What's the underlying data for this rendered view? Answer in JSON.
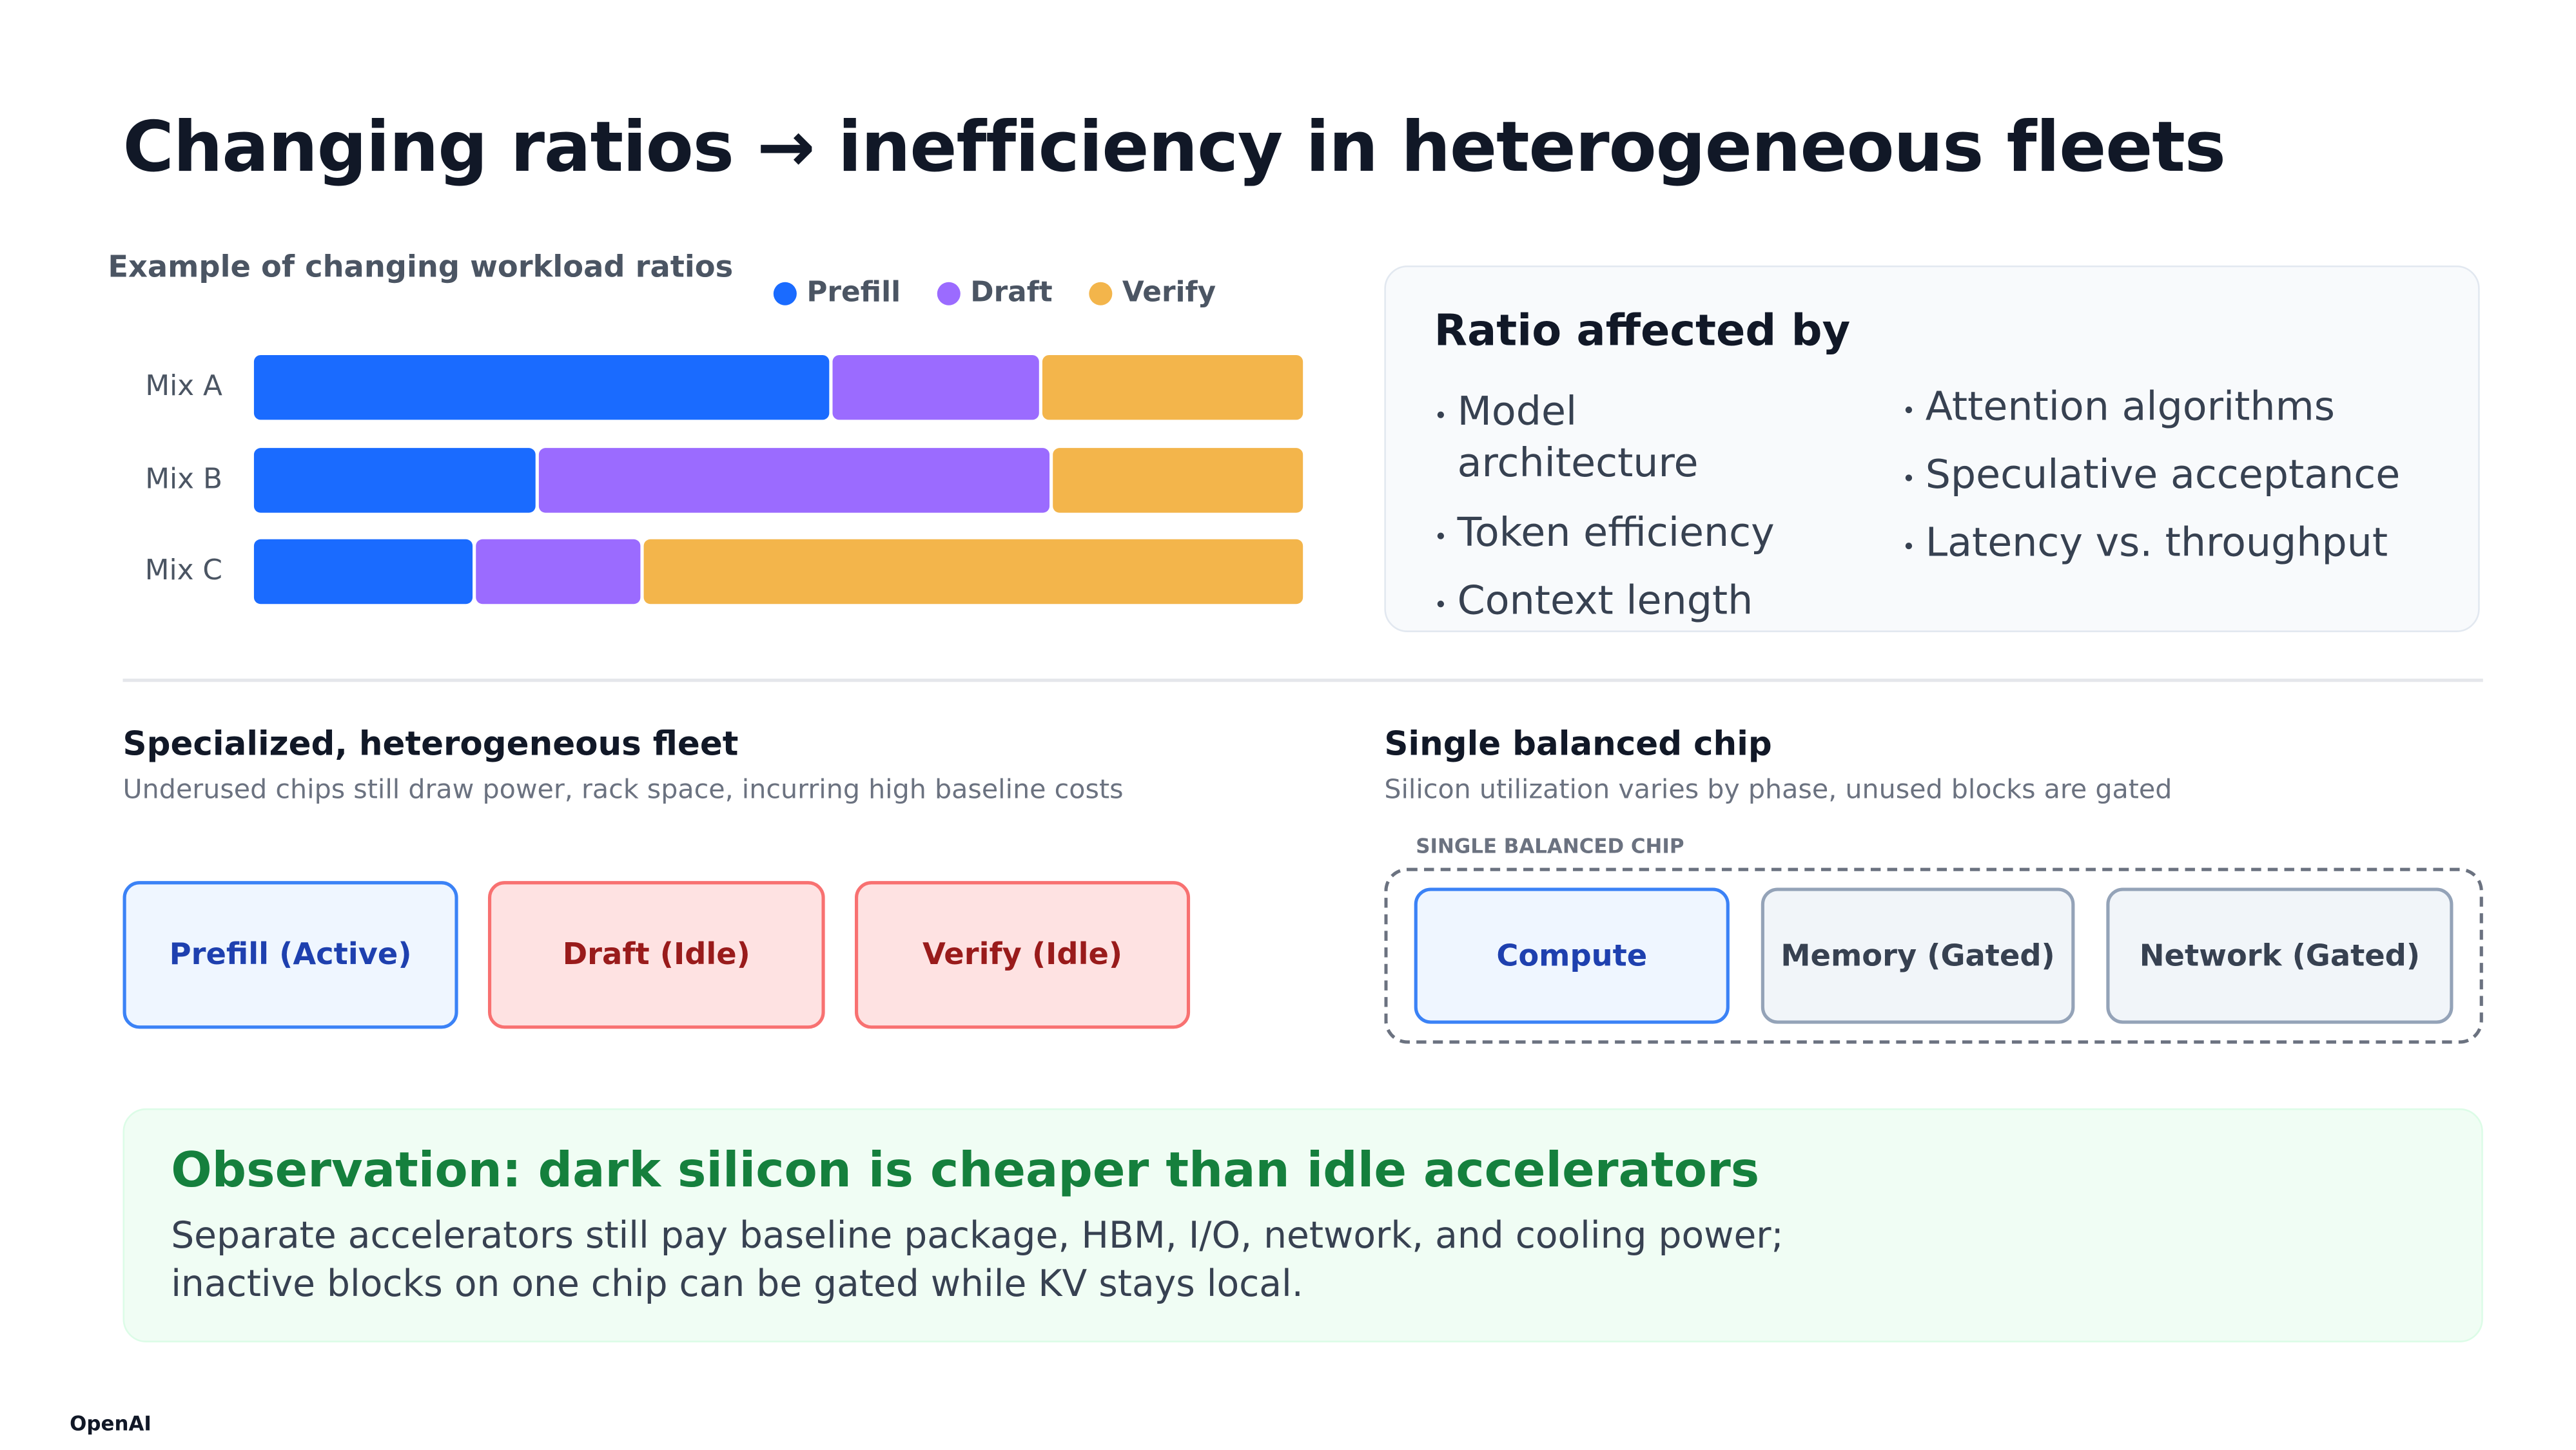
{
  "title": "Changing ratios → inefficiency in heterogeneous fleets",
  "chart_data": {
    "type": "bar",
    "orientation": "horizontal",
    "stacked": true,
    "title": "Example of changing workload ratios",
    "categories": [
      "Mix A",
      "Mix B",
      "Mix C"
    ],
    "series": [
      {
        "name": "Prefill",
        "color": "#1a6bff",
        "values": [
          55,
          27,
          21
        ]
      },
      {
        "name": "Draft",
        "color": "#9b6bff",
        "values": [
          20,
          49,
          16
        ]
      },
      {
        "name": "Verify",
        "color": "#f3b54b",
        "values": [
          25,
          24,
          63
        ]
      }
    ]
  },
  "ratio_panel": {
    "title": "Ratio affected by",
    "columns": [
      [
        "Model architecture",
        "Token efficiency",
        "Context length"
      ],
      [
        "Attention algorithms",
        "Speculative acceptance",
        "Latency vs. throughput"
      ]
    ]
  },
  "fleet": {
    "title": "Specialized, heterogeneous fleet",
    "subtitle": "Underused chips still draw power, rack space, incurring high baseline costs",
    "boxes": [
      "Prefill (Active)",
      "Draft (Idle)",
      "Verify (Idle)"
    ]
  },
  "chip": {
    "title": "Single balanced chip",
    "subtitle": "Silicon utilization varies by phase, unused blocks are gated",
    "label": "SINGLE BALANCED CHIP",
    "boxes": [
      "Compute",
      "Memory (Gated)",
      "Network (Gated)"
    ]
  },
  "observation": {
    "title": "Observation: dark silicon is cheaper than idle accelerators",
    "lines": [
      "Separate accelerators still pay baseline package, HBM, I/O, network, and cooling power;",
      "inactive blocks on one chip can be gated while KV stays local."
    ]
  },
  "footer": "OpenAI"
}
